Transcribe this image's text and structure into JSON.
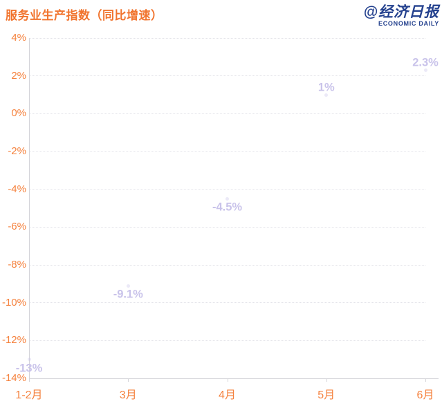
{
  "header": {
    "title": "服务业生产指数（同比增速）",
    "logo": {
      "text": "@经济日报",
      "subtext": "ECONOMIC DAILY",
      "color": "#24418e"
    }
  },
  "colors": {
    "title_orange": "#f1742e",
    "axis_tick_orange": "#f5823e",
    "data_label_lavender": "#c9c3ea",
    "grid_line": "#e3e3e9",
    "axis_line": "#d4d4d9",
    "background": "#ffffff"
  },
  "chart_data": {
    "type": "line",
    "title": "服务业生产指数（同比增速）",
    "categories": [
      "1-2月",
      "3月",
      "4月",
      "5月",
      "6月"
    ],
    "values": [
      -13,
      -9.1,
      -4.5,
      1,
      2.3
    ],
    "data_labels": [
      "-13%",
      "-9.1%",
      "-4.5%",
      "1%",
      "2.3%"
    ],
    "xlabel": "",
    "ylabel": "",
    "ylim": [
      -14,
      4
    ],
    "y_tick_step": 2,
    "y_tick_labels": [
      "4%",
      "2%",
      "0%",
      "-2%",
      "-4%",
      "-6%",
      "-8%",
      "-10%",
      "-12%",
      "-14%"
    ],
    "grid": "horizontal dotted lines on, vertical off",
    "legend": "none",
    "line_visible": false,
    "marker_visible": "very faint",
    "label_placement": "below point when value negative, above point when positive"
  }
}
